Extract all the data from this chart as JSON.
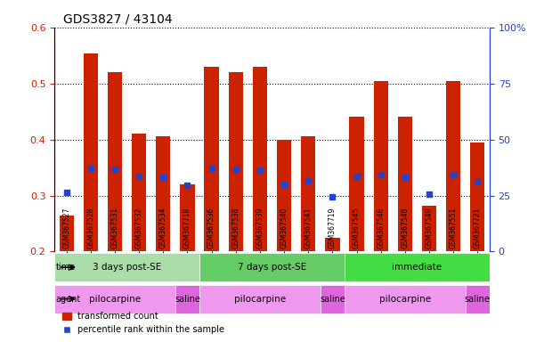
{
  "title": "GDS3827 / 43104",
  "samples": [
    "GSM367527",
    "GSM367528",
    "GSM367531",
    "GSM367532",
    "GSM367534",
    "GSM367718",
    "GSM367536",
    "GSM367538",
    "GSM367539",
    "GSM367540",
    "GSM367541",
    "GSM367719",
    "GSM367545",
    "GSM367546",
    "GSM367548",
    "GSM367549",
    "GSM367551",
    "GSM367721"
  ],
  "red_values": [
    0.265,
    0.553,
    0.52,
    0.41,
    0.406,
    0.32,
    0.53,
    0.52,
    0.53,
    0.4,
    0.405,
    0.224,
    0.44,
    0.505,
    0.44,
    0.282,
    0.504,
    0.395
  ],
  "blue_values": [
    0.305,
    0.348,
    0.347,
    0.334,
    0.332,
    0.318,
    0.348,
    0.347,
    0.345,
    0.32,
    0.326,
    0.298,
    0.334,
    0.338,
    0.332,
    0.302,
    0.338,
    0.325
  ],
  "ymin": 0.2,
  "ymax": 0.6,
  "red_color": "#cc2200",
  "blue_color": "#2244cc",
  "bar_width": 0.6,
  "groups_time": [
    {
      "label": "3 days post-SE",
      "start": 0,
      "end": 5,
      "color": "#aaddaa"
    },
    {
      "label": "7 days post-SE",
      "start": 6,
      "end": 11,
      "color": "#66cc66"
    },
    {
      "label": "immediate",
      "start": 12,
      "end": 17,
      "color": "#44dd44"
    }
  ],
  "groups_agent": [
    {
      "label": "pilocarpine",
      "start": 0,
      "end": 4,
      "color": "#ee99ee"
    },
    {
      "label": "saline",
      "start": 5,
      "end": 5,
      "color": "#dd66dd"
    },
    {
      "label": "pilocarpine",
      "start": 6,
      "end": 10,
      "color": "#ee99ee"
    },
    {
      "label": "saline",
      "start": 11,
      "end": 11,
      "color": "#dd66dd"
    },
    {
      "label": "pilocarpine",
      "start": 12,
      "end": 16,
      "color": "#ee99ee"
    },
    {
      "label": "saline",
      "start": 17,
      "end": 17,
      "color": "#dd66dd"
    }
  ],
  "time_label": "time",
  "agent_label": "agent",
  "legend_red": "transformed count",
  "legend_blue": "percentile rank within the sample",
  "bg_color": "#ffffff",
  "tick_color_left": "#cc2200",
  "tick_color_right": "#2244cc"
}
